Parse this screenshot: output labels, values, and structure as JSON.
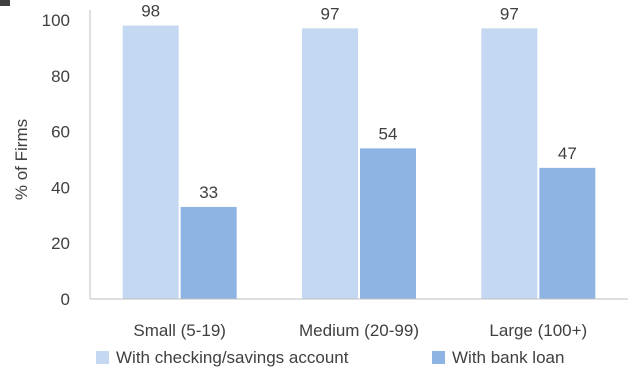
{
  "chart_data": {
    "type": "bar",
    "title": "",
    "xlabel": "",
    "ylabel": "% of Firms",
    "ylim": [
      0,
      100
    ],
    "yticks": [
      0,
      20,
      40,
      60,
      80,
      100
    ],
    "grid": false,
    "legend_position": "bottom",
    "categories": [
      "Small (5-19)",
      "Medium (20-99)",
      "Large (100+)"
    ],
    "series": [
      {
        "name": "With checking/savings account",
        "values": [
          98,
          97,
          97
        ],
        "color": "#c5d8f1"
      },
      {
        "name": "With bank loan",
        "values": [
          33,
          54,
          47
        ],
        "color": "#8db4e2"
      }
    ]
  }
}
